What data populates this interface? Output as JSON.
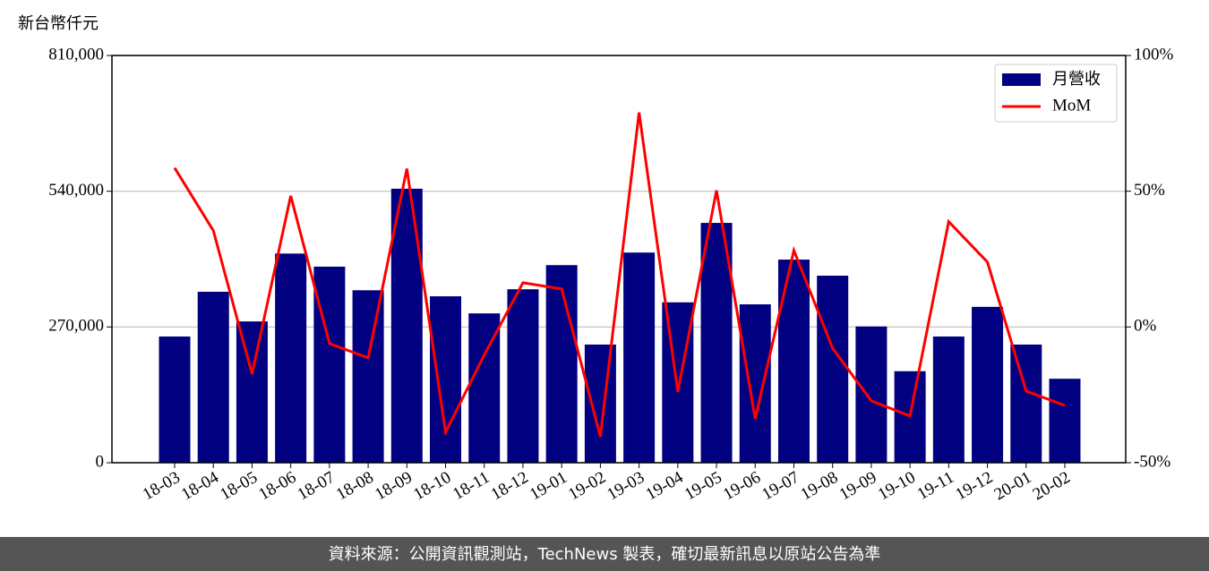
{
  "chart_data": {
    "type": "bar",
    "y_label": "新台幣仟元",
    "footer": "資料來源：公開資訊觀測站，TechNews 製表，確切最新訊息以原站公告為準",
    "categories": [
      "18-03",
      "18-04",
      "18-05",
      "18-06",
      "18-07",
      "18-08",
      "18-09",
      "18-10",
      "18-11",
      "18-12",
      "19-01",
      "19-02",
      "19-03",
      "19-04",
      "19-05",
      "19-06",
      "19-07",
      "19-08",
      "19-09",
      "19-10",
      "19-11",
      "19-12",
      "20-01",
      "20-02"
    ],
    "series": [
      {
        "name": "月營收",
        "type": "bar",
        "color": "#000080",
        "values": [
          251000,
          340000,
          281000,
          416000,
          390000,
          343000,
          545000,
          331000,
          297000,
          345000,
          393000,
          235000,
          418000,
          319000,
          477000,
          315000,
          404000,
          372000,
          271000,
          182000,
          251000,
          310000,
          235000,
          167000
        ]
      },
      {
        "name": "MoM",
        "type": "line",
        "axis": "y2",
        "color": "#ff0000",
        "values": [
          58.6,
          35.5,
          -17.3,
          48.3,
          -6.1,
          -11.4,
          58.3,
          -38.8,
          -10.3,
          16.3,
          14.0,
          -40.4,
          79.0,
          -23.9,
          50.3,
          -33.8,
          28.2,
          -7.8,
          -27.2,
          -32.8,
          38.8,
          23.9,
          -23.6,
          -28.9
        ]
      }
    ],
    "ylim": [
      0,
      810000
    ],
    "yticks": [
      0,
      {
        "value": 270000,
        "label": "270,000"
      },
      {
        "value": 540000,
        "label": "540,000"
      },
      {
        "value": 810000,
        "label": "810,000"
      }
    ],
    "y2lim": [
      -50,
      100
    ],
    "y2ticks": [
      {
        "value": -50,
        "label": "-50%"
      },
      {
        "value": 0,
        "label": "0%"
      },
      {
        "value": 50,
        "label": "50%"
      },
      {
        "value": 100,
        "label": "100%"
      }
    ],
    "grid": true,
    "legend": "upper right"
  }
}
